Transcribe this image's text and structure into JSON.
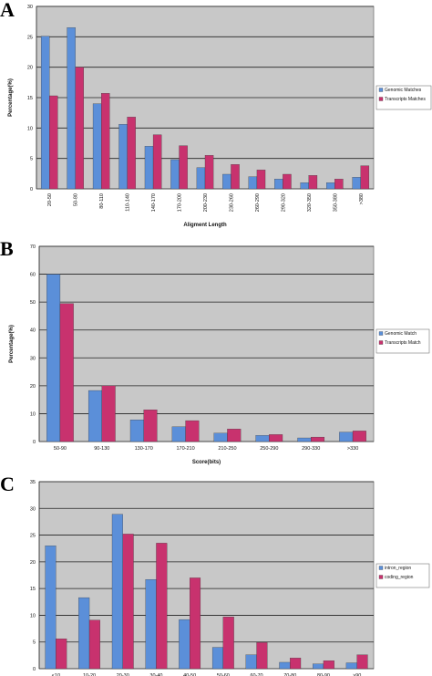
{
  "chart_data": [
    {
      "panel": "A",
      "type": "bar",
      "categories": [
        "20-50",
        "50-80",
        "80-110",
        "110-140",
        "140-170",
        "170-200",
        "200-230",
        "230-260",
        "260-290",
        "290-320",
        "320-350",
        "350-380",
        ">380"
      ],
      "series": [
        {
          "name": "Genomic Matches",
          "color": "#5b8fd9",
          "values": [
            25.1,
            26.5,
            14.0,
            10.6,
            7.0,
            4.8,
            3.5,
            2.4,
            2.0,
            1.6,
            1.0,
            1.0,
            1.9
          ]
        },
        {
          "name": "Transcripts Matches",
          "color": "#c8326e",
          "values": [
            15.3,
            20.0,
            15.7,
            11.8,
            8.9,
            7.1,
            5.5,
            4.0,
            3.1,
            2.4,
            2.2,
            1.6,
            3.8
          ]
        }
      ],
      "xlabel": "Aligment Length",
      "ylabel": "Percentage(%)",
      "ylim": [
        0,
        30
      ],
      "yticks": [
        "0",
        "5",
        "10",
        "15",
        "20",
        "25",
        "30"
      ],
      "legend_position": "right",
      "grid": true
    },
    {
      "panel": "B",
      "type": "bar",
      "categories": [
        "50-90",
        "90-130",
        "130-170",
        "170-210",
        "210-250",
        "250-290",
        "290-330",
        ">330"
      ],
      "series": [
        {
          "name": "Genomic Match",
          "color": "#5b8fd9",
          "values": [
            60.0,
            18.3,
            7.8,
            5.3,
            3.0,
            2.2,
            1.3,
            3.4
          ]
        },
        {
          "name": "Transcripts Match",
          "color": "#c8326e",
          "values": [
            49.5,
            20.0,
            11.4,
            7.5,
            4.5,
            2.5,
            1.6,
            3.8
          ]
        }
      ],
      "xlabel": "Score(bits)",
      "ylabel": "Percentage(%)",
      "ylim": [
        0,
        70
      ],
      "yticks": [
        "0",
        "10",
        "20",
        "30",
        "40",
        "50",
        "60",
        "70"
      ],
      "legend_position": "right",
      "grid": true
    },
    {
      "panel": "C",
      "type": "bar",
      "categories": [
        "<10",
        "10-20",
        "20-30",
        "30-40",
        "40-50",
        "50-60",
        "60-70",
        "70-80",
        "80-90",
        ">90"
      ],
      "series": [
        {
          "name": "intron_region",
          "color": "#5b8fd9",
          "values": [
            23.0,
            13.3,
            28.9,
            16.7,
            9.2,
            4.0,
            2.6,
            1.2,
            0.9,
            1.1
          ]
        },
        {
          "name": "coding_region",
          "color": "#c8326e",
          "values": [
            5.6,
            9.1,
            25.2,
            23.5,
            17.0,
            9.7,
            4.9,
            2.0,
            1.5,
            2.6
          ]
        }
      ],
      "xlabel": "",
      "ylabel": "",
      "ylim": [
        0,
        35
      ],
      "yticks": [
        "0",
        "5",
        "10",
        "15",
        "20",
        "25",
        "30",
        "35"
      ],
      "legend_position": "right",
      "grid": true
    }
  ]
}
